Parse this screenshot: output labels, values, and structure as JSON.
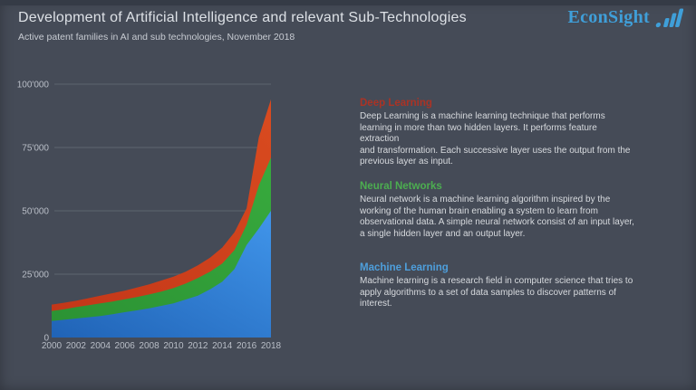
{
  "header": {
    "title": "Development of Artificial Intelligence and relevant Sub-Technologies",
    "subtitle": "Active patent families in AI and sub technologies, November 2018"
  },
  "logo": {
    "text": "EconSight",
    "color": "#3f9fd9"
  },
  "chart_data": {
    "type": "area",
    "stacked": true,
    "title": "Development of Artificial Intelligence and relevant Sub-Technologies",
    "subtitle": "Active patent families in AI and sub technologies, November 2018",
    "xlabel": "",
    "ylabel": "",
    "ylim": [
      0,
      100000
    ],
    "grid": true,
    "legend_position": "right-text-blocks",
    "x": [
      2000,
      2001,
      2002,
      2003,
      2004,
      2005,
      2006,
      2007,
      2008,
      2009,
      2010,
      2011,
      2012,
      2013,
      2014,
      2015,
      2016,
      2017,
      2018
    ],
    "series": [
      {
        "name": "Machine Learning",
        "color": "#2a78d0",
        "color_dark": "#2063b6",
        "color_light": "#3f93e8",
        "values": [
          6500,
          7000,
          7500,
          8000,
          8500,
          9200,
          10000,
          10700,
          11500,
          12500,
          13500,
          15000,
          16500,
          19000,
          22000,
          27000,
          36500,
          43000,
          50000
        ]
      },
      {
        "name": "Neural Networks",
        "color": "#2f9c36",
        "color_dark": "#2b9133",
        "color_light": "#37a93d",
        "values": [
          4000,
          4100,
          4500,
          4700,
          5000,
          5000,
          5100,
          5300,
          5500,
          5600,
          6000,
          6300,
          7000,
          7000,
          7200,
          7500,
          8000,
          17000,
          21000
        ]
      },
      {
        "name": "Deep Learning",
        "color": "#cc3a1d",
        "color_dark": "#c13518",
        "color_light": "#d84a1f",
        "values": [
          2500,
          2600,
          2500,
          2800,
          3000,
          3300,
          3400,
          3700,
          4000,
          4400,
          4500,
          4700,
          5000,
          5500,
          6300,
          7000,
          6500,
          19000,
          23000
        ]
      }
    ],
    "yticks": [
      {
        "value": 0,
        "label": "0"
      },
      {
        "value": 25000,
        "label": "25'000"
      },
      {
        "value": 50000,
        "label": "50'000"
      },
      {
        "value": 75000,
        "label": "75'000"
      },
      {
        "value": 100000,
        "label": "100'000"
      }
    ],
    "xticks": [
      2000,
      2002,
      2004,
      2006,
      2008,
      2010,
      2012,
      2014,
      2016,
      2018
    ]
  },
  "annotations": [
    {
      "title": "Deep Learning",
      "color": "#ab3325",
      "text": "Deep Learning is a machine learning technique that performs\nlearning in more than two hidden layers. It performs feature extraction\nand transformation. Each successive layer uses the output from the\nprevious layer as input."
    },
    {
      "title": "Neural Networks",
      "color": "#4cae50",
      "text": "Neural network is a machine learning algorithm inspired by the\nworking of the human brain enabling a system to learn from\nobservational data. A simple neural network consist of an input layer,\na single hidden layer and an output layer."
    },
    {
      "title": "Machine Learning",
      "color": "#4e9fdc",
      "text": "Machine learning is a research field in computer science that tries to\napply algorithms to a set of data samples to discover patterns of\ninterest."
    }
  ]
}
